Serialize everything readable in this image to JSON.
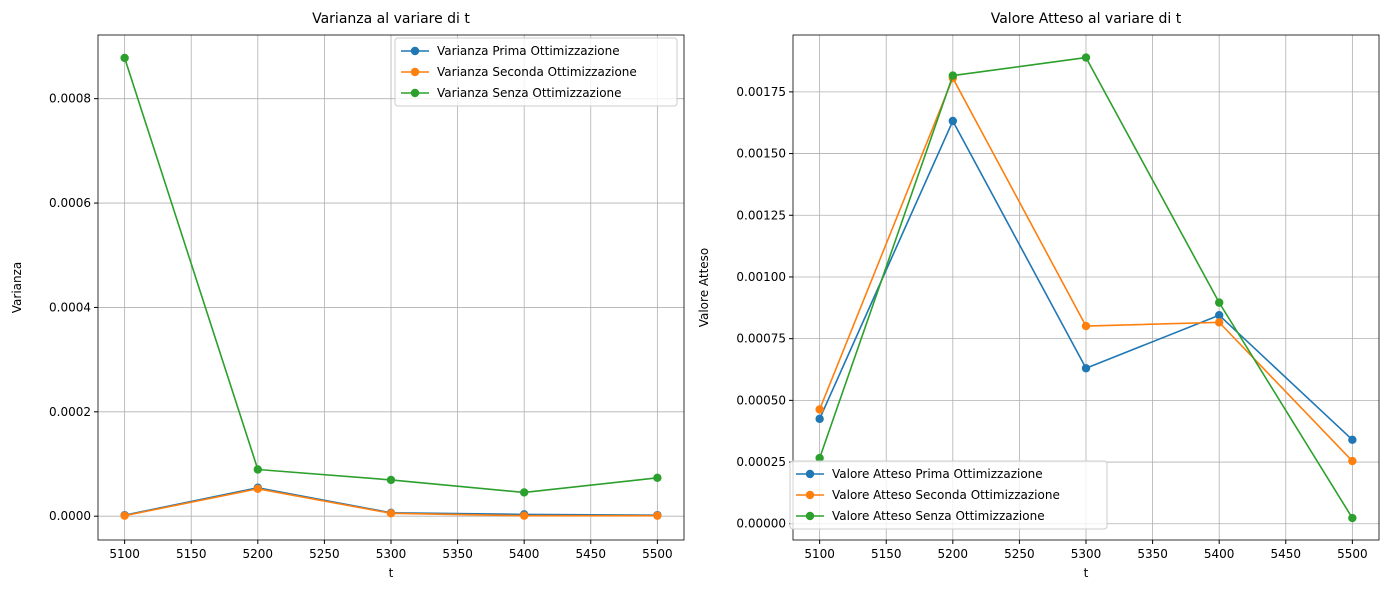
{
  "chart_data": [
    {
      "type": "line",
      "title": "Varianza al variare di t",
      "xlabel": "t",
      "ylabel": "Varianza",
      "x": [
        5100,
        5200,
        5300,
        5400,
        5500
      ],
      "xlim": [
        5080,
        5520
      ],
      "ylim": [
        -4.56e-05,
        0.000922
      ],
      "xticks": [
        5100,
        5150,
        5200,
        5250,
        5300,
        5350,
        5400,
        5450,
        5500
      ],
      "xtick_labels": [
        "5100",
        "5150",
        "5200",
        "5250",
        "5300",
        "5350",
        "5400",
        "5450",
        "5500"
      ],
      "yticks": [
        0,
        0.0002,
        0.0004,
        0.0006,
        0.0008
      ],
      "ytick_labels": [
        "0.0000",
        "0.0002",
        "0.0004",
        "0.0006",
        "0.0008"
      ],
      "grid": true,
      "legend_position": "top-right",
      "series": [
        {
          "name": "Varianza Prima Ottimizzazione",
          "color": "#1f77b4",
          "values": [
            2e-06,
            5.45e-05,
            6.5e-06,
            3.5e-06,
            2e-06
          ]
        },
        {
          "name": "Varianza Seconda Ottimizzazione",
          "color": "#ff7f0e",
          "values": [
            1e-06,
            5.25e-05,
            5.5e-06,
            1e-06,
            1e-06
          ]
        },
        {
          "name": "Varianza Senza Ottimizzazione",
          "color": "#2ca02c",
          "values": [
            0.000878,
            8.95e-05,
            6.95e-05,
            4.55e-05,
            7.35e-05
          ]
        }
      ]
    },
    {
      "type": "line",
      "title": "Valore Atteso al variare di t",
      "xlabel": "t",
      "ylabel": "Valore Atteso",
      "x": [
        5100,
        5200,
        5300,
        5400,
        5500
      ],
      "xlim": [
        5080,
        5520
      ],
      "ylim": [
        -6.59e-05,
        0.0019805
      ],
      "xticks": [
        5100,
        5150,
        5200,
        5250,
        5300,
        5350,
        5400,
        5450,
        5500
      ],
      "xtick_labels": [
        "5100",
        "5150",
        "5200",
        "5250",
        "5300",
        "5350",
        "5400",
        "5450",
        "5500"
      ],
      "yticks": [
        0,
        0.00025,
        0.0005,
        0.00075,
        0.001,
        0.00125,
        0.0015,
        0.00175
      ],
      "ytick_labels": [
        "0.00000",
        "0.00025",
        "0.00050",
        "0.00075",
        "0.00100",
        "0.00125",
        "0.00150",
        "0.00175"
      ],
      "grid": true,
      "legend_position": "bottom-left",
      "series": [
        {
          "name": "Valore Atteso Prima Ottimizzazione",
          "color": "#1f77b4",
          "values": [
            0.000425,
            0.001632,
            0.00063,
            0.000845,
            0.00034
          ]
        },
        {
          "name": "Valore Atteso Seconda Ottimizzazione",
          "color": "#ff7f0e",
          "values": [
            0.000463,
            0.001806,
            0.000801,
            0.000816,
            0.000254
          ]
        },
        {
          "name": "Valore Atteso Senza Ottimizzazione",
          "color": "#2ca02c",
          "values": [
            0.000266,
            0.001816,
            0.001889,
            0.000896,
            2.3e-05
          ]
        }
      ]
    }
  ]
}
